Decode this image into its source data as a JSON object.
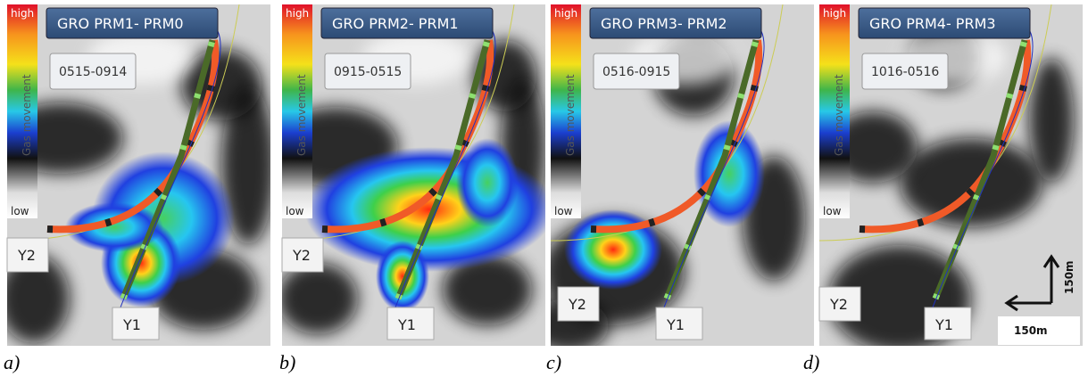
{
  "panels": [
    {
      "title": "GRO PRM1- PRM0",
      "period": "0515-0914",
      "colorbar": {
        "high": "high",
        "low": "low",
        "label": "Gas movement"
      },
      "wells": [
        "Y2",
        "Y1"
      ],
      "caption": "a)"
    },
    {
      "title": "GRO PRM2- PRM1",
      "period": "0915-0515",
      "colorbar": {
        "high": "high",
        "low": "low",
        "label": "Gas movement"
      },
      "wells": [
        "Y2",
        "Y1"
      ],
      "caption": "b)"
    },
    {
      "title": "GRO PRM3- PRM2",
      "period": "0516-0915",
      "colorbar": {
        "high": "high",
        "low": "low",
        "label": "Gas movement"
      },
      "wells": [
        "Y2",
        "Y1"
      ],
      "caption": "c)"
    },
    {
      "title": "GRO PRM4- PRM3",
      "period": "1016-0516",
      "colorbar": {
        "high": "high",
        "low": "low",
        "label": "Gas movement"
      },
      "wells": [
        "Y2",
        "Y1"
      ],
      "caption": "d)",
      "scale": {
        "x": "150m",
        "y": "150m"
      }
    }
  ]
}
